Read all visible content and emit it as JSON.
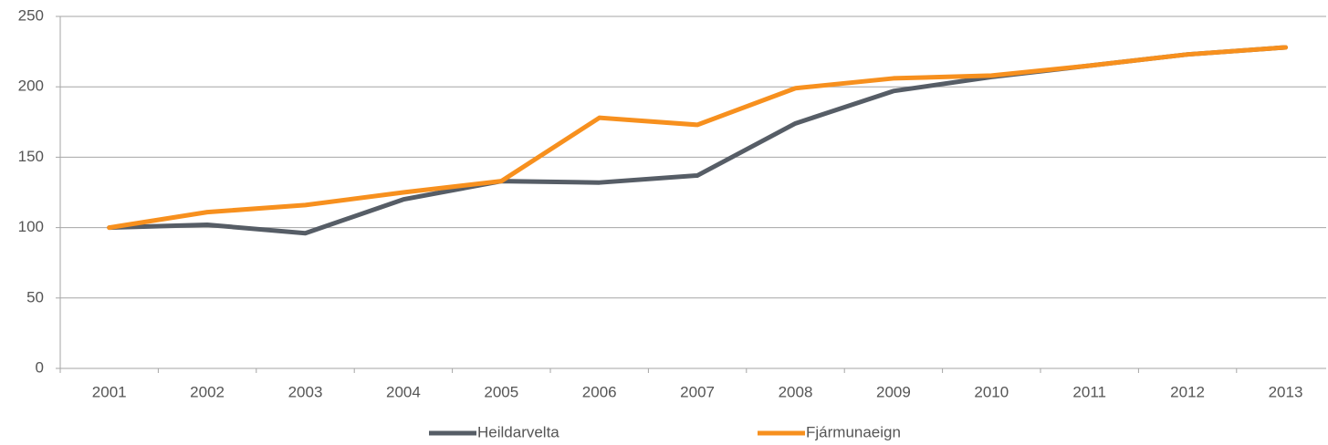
{
  "chart_data": {
    "type": "line",
    "categories": [
      "2001",
      "2002",
      "2003",
      "2004",
      "2005",
      "2006",
      "2007",
      "2008",
      "2009",
      "2010",
      "2011",
      "2012",
      "2013"
    ],
    "series": [
      {
        "name": "Heildarvelta",
        "color": "#565d66",
        "values": [
          100,
          102,
          96,
          120,
          133,
          132,
          137,
          174,
          197,
          207,
          215,
          223,
          228
        ]
      },
      {
        "name": "Fjármunaeign",
        "color": "#f7901e",
        "values": [
          100,
          111,
          116,
          125,
          133,
          178,
          173,
          199,
          206,
          208,
          215,
          223,
          228
        ]
      }
    ],
    "ylim": [
      0,
      250
    ],
    "yticks": [
      0,
      50,
      100,
      150,
      200,
      250
    ],
    "grid": true,
    "legend": "bottom"
  }
}
